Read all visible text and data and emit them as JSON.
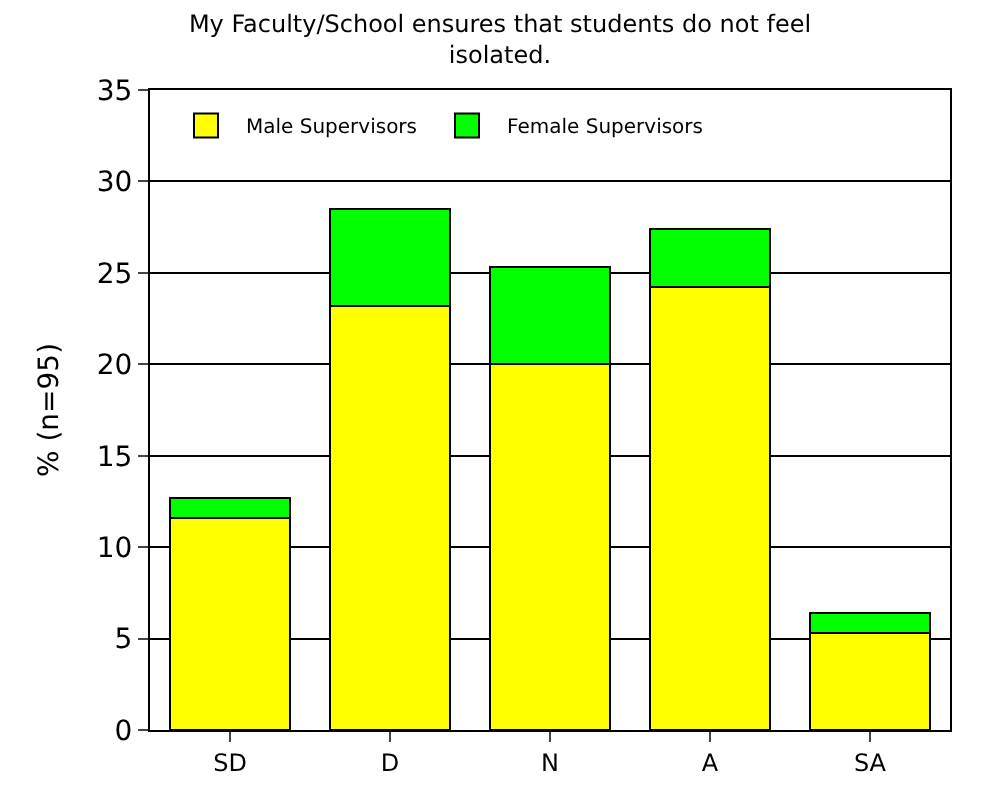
{
  "chart_data": {
    "type": "bar",
    "title": "My Faculty/School ensures that students do not feel\nisolated.",
    "ylabel": "% (n=95)",
    "categories": [
      "SD",
      "D",
      "N",
      "A",
      "SA"
    ],
    "stacked": true,
    "series": [
      {
        "name": "Male Supervisors",
        "color": "#ffff00",
        "values": [
          11.6,
          23.2,
          20.0,
          24.2,
          5.3
        ]
      },
      {
        "name": "Female Supervisors",
        "color": "#00ff00",
        "values": [
          1.1,
          5.3,
          5.3,
          3.2,
          1.1
        ]
      }
    ],
    "ylim": [
      0,
      35
    ],
    "yticks": [
      0,
      5,
      10,
      15,
      20,
      25,
      30,
      35
    ],
    "grid": "y",
    "legend": "top left"
  }
}
